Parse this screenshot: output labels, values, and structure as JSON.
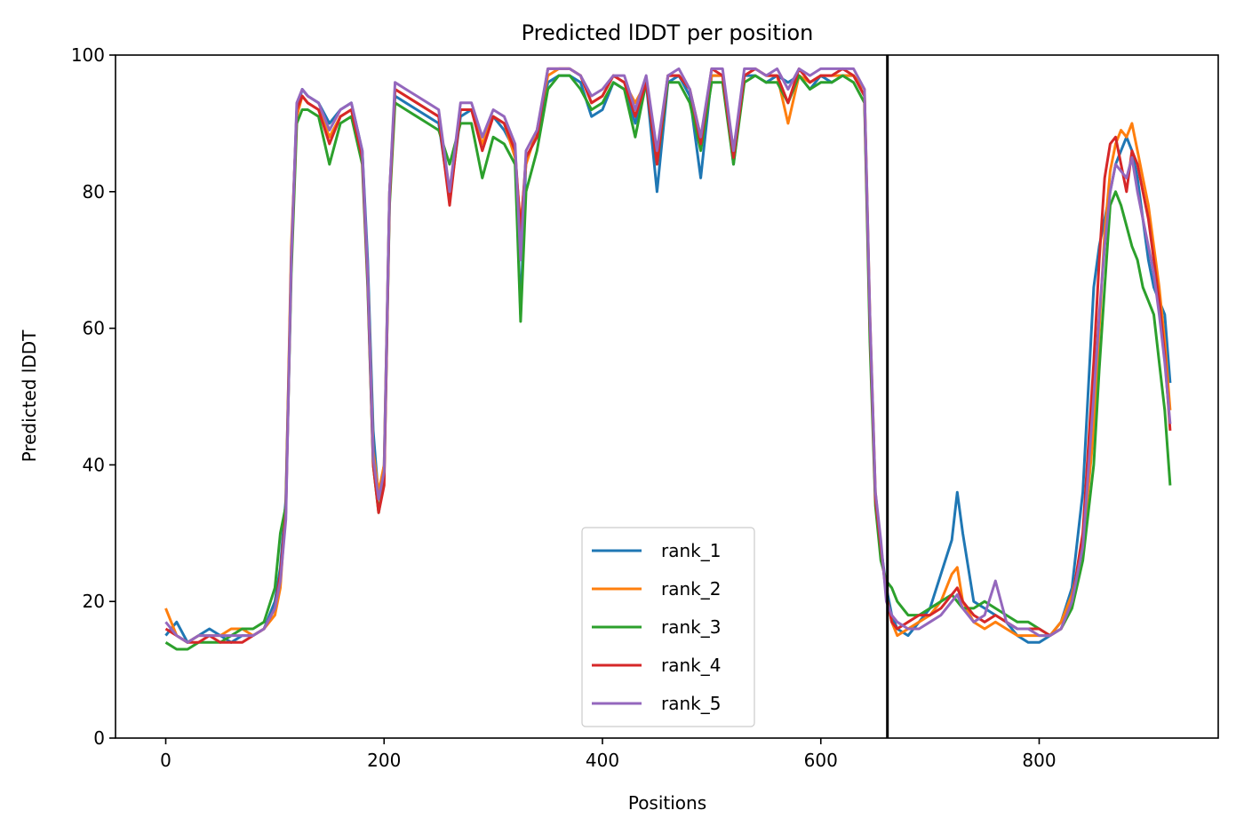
{
  "chart_data": {
    "type": "line",
    "title": "Predicted lDDT per position",
    "xlabel": "Positions",
    "ylabel": "Predicted lDDT",
    "xlim": [
      -46,
      964
    ],
    "ylim": [
      0,
      100
    ],
    "x_ticks": [
      0,
      200,
      400,
      600,
      800
    ],
    "y_ticks": [
      0,
      20,
      40,
      60,
      80,
      100
    ],
    "grid": false,
    "legend_position": "bottom-center",
    "vertical_line": {
      "x": 661,
      "color": "#000000"
    },
    "series": [
      {
        "name": "rank_1",
        "color": "#1f77b4",
        "x": [
          0,
          10,
          20,
          30,
          40,
          50,
          60,
          70,
          80,
          90,
          100,
          105,
          110,
          115,
          120,
          125,
          130,
          140,
          150,
          160,
          170,
          180,
          185,
          190,
          195,
          200,
          205,
          210,
          220,
          230,
          240,
          250,
          260,
          270,
          280,
          290,
          300,
          310,
          320,
          325,
          330,
          340,
          350,
          360,
          370,
          380,
          390,
          400,
          410,
          420,
          430,
          440,
          450,
          460,
          470,
          480,
          490,
          500,
          510,
          520,
          530,
          540,
          550,
          560,
          570,
          580,
          590,
          600,
          610,
          620,
          630,
          640,
          645,
          650,
          655,
          660,
          665,
          670,
          680,
          690,
          700,
          710,
          720,
          725,
          730,
          740,
          750,
          760,
          770,
          780,
          790,
          800,
          810,
          820,
          830,
          840,
          850,
          855,
          860,
          865,
          870,
          875,
          880,
          885,
          890,
          895,
          900,
          905,
          910,
          915,
          920
        ],
        "values": [
          15,
          17,
          14,
          15,
          16,
          15,
          14,
          15,
          15,
          16,
          20,
          25,
          35,
          70,
          92,
          95,
          94,
          93,
          90,
          92,
          93,
          86,
          70,
          45,
          35,
          40,
          80,
          94,
          93,
          92,
          91,
          90,
          79,
          91,
          92,
          88,
          91,
          89,
          86,
          62,
          85,
          88,
          96,
          97,
          97,
          96,
          91,
          92,
          96,
          95,
          90,
          96,
          80,
          96,
          97,
          94,
          82,
          97,
          97,
          84,
          97,
          97,
          96,
          97,
          96,
          97,
          95,
          97,
          96,
          97,
          97,
          94,
          60,
          35,
          28,
          22,
          18,
          16,
          15,
          17,
          19,
          24,
          29,
          36,
          30,
          20,
          19,
          18,
          17,
          15,
          14,
          14,
          15,
          17,
          22,
          36,
          66,
          72,
          76,
          80,
          84,
          86,
          88,
          86,
          82,
          76,
          70,
          66,
          64,
          62,
          52
        ]
      },
      {
        "name": "rank_2",
        "color": "#ff7f0e",
        "x": [
          0,
          10,
          20,
          30,
          40,
          50,
          60,
          70,
          80,
          90,
          100,
          105,
          110,
          115,
          120,
          125,
          130,
          140,
          150,
          160,
          170,
          180,
          185,
          190,
          195,
          200,
          205,
          210,
          220,
          230,
          240,
          250,
          260,
          270,
          280,
          290,
          300,
          310,
          320,
          325,
          330,
          340,
          350,
          360,
          370,
          380,
          390,
          400,
          410,
          420,
          430,
          440,
          450,
          460,
          470,
          480,
          490,
          500,
          510,
          520,
          530,
          540,
          550,
          560,
          570,
          580,
          590,
          600,
          610,
          620,
          630,
          640,
          645,
          650,
          655,
          660,
          665,
          670,
          680,
          690,
          700,
          710,
          720,
          725,
          730,
          740,
          750,
          760,
          770,
          780,
          790,
          800,
          810,
          820,
          830,
          840,
          850,
          855,
          860,
          865,
          870,
          875,
          880,
          885,
          890,
          895,
          900,
          905,
          910,
          915,
          920
        ],
        "values": [
          19,
          15,
          14,
          15,
          15,
          15,
          16,
          16,
          15,
          16,
          18,
          22,
          34,
          72,
          91,
          94,
          93,
          92,
          88,
          91,
          92,
          85,
          68,
          42,
          36,
          40,
          80,
          95,
          94,
          93,
          92,
          91,
          80,
          92,
          92,
          87,
          91,
          90,
          85,
          75,
          84,
          89,
          97,
          98,
          98,
          97,
          93,
          94,
          97,
          96,
          93,
          96,
          85,
          97,
          97,
          95,
          88,
          97,
          97,
          86,
          97,
          98,
          97,
          97,
          90,
          97,
          96,
          97,
          97,
          97,
          97,
          95,
          62,
          36,
          28,
          21,
          17,
          15,
          16,
          17,
          18,
          20,
          24,
          25,
          20,
          17,
          16,
          17,
          16,
          15,
          15,
          15,
          15,
          17,
          21,
          28,
          45,
          60,
          74,
          83,
          87,
          89,
          88,
          90,
          86,
          82,
          78,
          72,
          66,
          58,
          48
        ]
      },
      {
        "name": "rank_3",
        "color": "#2ca02c",
        "x": [
          0,
          10,
          20,
          30,
          40,
          50,
          60,
          70,
          80,
          90,
          100,
          105,
          110,
          115,
          120,
          125,
          130,
          140,
          150,
          160,
          170,
          180,
          185,
          190,
          195,
          200,
          205,
          210,
          220,
          230,
          240,
          250,
          260,
          270,
          280,
          290,
          300,
          310,
          320,
          325,
          330,
          340,
          350,
          360,
          370,
          380,
          390,
          400,
          410,
          420,
          430,
          440,
          450,
          460,
          470,
          480,
          490,
          500,
          510,
          520,
          530,
          540,
          550,
          560,
          570,
          580,
          590,
          600,
          610,
          620,
          630,
          640,
          645,
          650,
          655,
          660,
          665,
          670,
          680,
          690,
          700,
          710,
          720,
          725,
          730,
          740,
          750,
          760,
          770,
          780,
          790,
          800,
          810,
          820,
          830,
          840,
          850,
          855,
          860,
          865,
          870,
          875,
          880,
          885,
          890,
          895,
          900,
          905,
          910,
          915,
          920
        ],
        "values": [
          14,
          13,
          13,
          14,
          14,
          14,
          15,
          16,
          16,
          17,
          22,
          30,
          34,
          68,
          90,
          92,
          92,
          91,
          84,
          90,
          91,
          84,
          66,
          40,
          33,
          38,
          78,
          93,
          92,
          91,
          90,
          89,
          84,
          90,
          90,
          82,
          88,
          87,
          84,
          61,
          80,
          86,
          95,
          97,
          97,
          95,
          92,
          93,
          96,
          95,
          88,
          96,
          84,
          96,
          96,
          93,
          86,
          96,
          96,
          84,
          96,
          97,
          96,
          96,
          93,
          97,
          95,
          96,
          96,
          97,
          96,
          93,
          58,
          34,
          26,
          23,
          22,
          20,
          18,
          18,
          19,
          20,
          21,
          20,
          19,
          19,
          20,
          19,
          18,
          17,
          17,
          16,
          15,
          16,
          19,
          26,
          40,
          54,
          66,
          78,
          80,
          78,
          75,
          72,
          70,
          66,
          64,
          62,
          55,
          48,
          37
        ]
      },
      {
        "name": "rank_4",
        "color": "#d62728",
        "x": [
          0,
          10,
          20,
          30,
          40,
          50,
          60,
          70,
          80,
          90,
          100,
          105,
          110,
          115,
          120,
          125,
          130,
          140,
          150,
          160,
          170,
          180,
          185,
          190,
          195,
          200,
          205,
          210,
          220,
          230,
          240,
          250,
          260,
          270,
          280,
          290,
          300,
          310,
          320,
          325,
          330,
          340,
          350,
          360,
          370,
          380,
          390,
          400,
          410,
          420,
          430,
          440,
          450,
          460,
          470,
          480,
          490,
          500,
          510,
          520,
          530,
          540,
          550,
          560,
          570,
          580,
          590,
          600,
          610,
          620,
          630,
          640,
          645,
          650,
          655,
          660,
          665,
          670,
          680,
          690,
          700,
          710,
          720,
          725,
          730,
          740,
          750,
          760,
          770,
          780,
          790,
          800,
          810,
          820,
          830,
          840,
          850,
          855,
          860,
          865,
          870,
          875,
          880,
          885,
          890,
          895,
          900,
          905,
          910,
          915,
          920
        ],
        "values": [
          16,
          15,
          14,
          14,
          15,
          14,
          14,
          14,
          15,
          16,
          19,
          24,
          33,
          70,
          92,
          94,
          93,
          92,
          87,
          91,
          92,
          85,
          67,
          40,
          33,
          37,
          79,
          95,
          94,
          93,
          92,
          91,
          78,
          92,
          92,
          86,
          91,
          90,
          86,
          74,
          85,
          88,
          98,
          98,
          98,
          97,
          93,
          94,
          97,
          96,
          91,
          96,
          84,
          97,
          97,
          95,
          87,
          98,
          97,
          85,
          97,
          98,
          97,
          97,
          93,
          98,
          96,
          97,
          97,
          98,
          97,
          94,
          61,
          35,
          28,
          21,
          17,
          16,
          17,
          18,
          18,
          19,
          21,
          22,
          20,
          18,
          17,
          18,
          17,
          16,
          16,
          16,
          15,
          16,
          20,
          30,
          55,
          70,
          82,
          87,
          88,
          84,
          80,
          86,
          84,
          80,
          76,
          70,
          64,
          56,
          45
        ]
      },
      {
        "name": "rank_5",
        "color": "#9467bd",
        "x": [
          0,
          10,
          20,
          30,
          40,
          50,
          60,
          70,
          80,
          90,
          100,
          105,
          110,
          115,
          120,
          125,
          130,
          140,
          150,
          160,
          170,
          180,
          185,
          190,
          195,
          200,
          205,
          210,
          220,
          230,
          240,
          250,
          260,
          270,
          280,
          290,
          300,
          310,
          320,
          325,
          330,
          340,
          350,
          360,
          370,
          380,
          390,
          400,
          410,
          420,
          430,
          440,
          450,
          460,
          470,
          480,
          490,
          500,
          510,
          520,
          530,
          540,
          550,
          560,
          570,
          580,
          590,
          600,
          610,
          620,
          630,
          640,
          645,
          650,
          655,
          660,
          665,
          670,
          680,
          690,
          700,
          710,
          720,
          725,
          730,
          740,
          750,
          760,
          770,
          780,
          790,
          800,
          810,
          820,
          830,
          840,
          850,
          855,
          860,
          865,
          870,
          875,
          880,
          885,
          890,
          895,
          900,
          905,
          910,
          915,
          920
        ],
        "values": [
          17,
          15,
          14,
          15,
          15,
          15,
          15,
          15,
          15,
          16,
          19,
          23,
          32,
          70,
          93,
          95,
          94,
          93,
          89,
          92,
          93,
          86,
          68,
          41,
          35,
          39,
          80,
          96,
          95,
          94,
          93,
          92,
          80,
          93,
          93,
          88,
          92,
          91,
          87,
          70,
          86,
          89,
          98,
          98,
          98,
          97,
          94,
          95,
          97,
          97,
          92,
          97,
          86,
          97,
          98,
          95,
          88,
          98,
          98,
          86,
          98,
          98,
          97,
          98,
          95,
          98,
          97,
          98,
          98,
          98,
          98,
          95,
          62,
          36,
          29,
          20,
          18,
          17,
          16,
          16,
          17,
          18,
          20,
          21,
          19,
          17,
          18,
          23,
          17,
          16,
          16,
          15,
          15,
          16,
          20,
          28,
          50,
          62,
          72,
          80,
          84,
          83,
          82,
          85,
          80,
          76,
          72,
          68,
          62,
          55,
          46
        ]
      }
    ]
  }
}
